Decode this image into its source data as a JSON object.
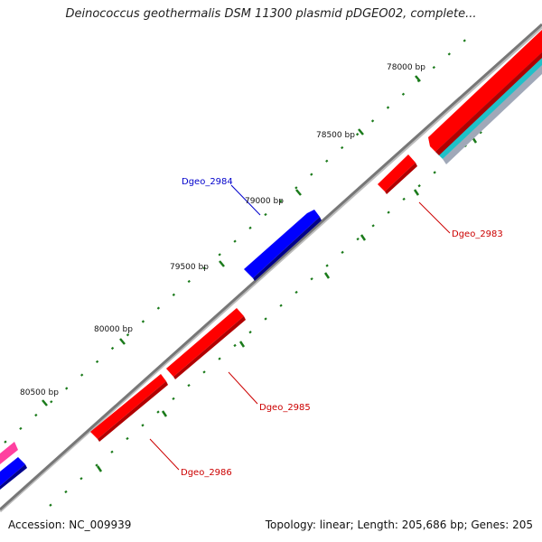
{
  "title": "Deinococcus geothermalis DSM 11300 plasmid pDGEO02, complete...",
  "footer": {
    "accession": "Accession: NC_009939",
    "summary": "Topology: linear; Length: 205,686 bp; Genes: 205"
  },
  "ruler": [
    {
      "label": "78000 bp"
    },
    {
      "label": "78500 bp"
    },
    {
      "label": "79000 bp"
    },
    {
      "label": "79500 bp"
    },
    {
      "label": "80000 bp"
    },
    {
      "label": "80500 bp"
    }
  ],
  "genes": [
    {
      "label": "Dgeo_2983",
      "color": "#ff0000",
      "strand": "reverse"
    },
    {
      "label": "Dgeo_2984",
      "color": "#0000ff",
      "strand": "forward"
    },
    {
      "label": "Dgeo_2985",
      "color": "#ff0000",
      "strand": "reverse"
    },
    {
      "label": "Dgeo_2986",
      "color": "#ff0000",
      "strand": "reverse"
    }
  ],
  "colors": {
    "backbone": "#808080",
    "forward": "#0000ff",
    "reverse": "#ff0000",
    "other": "#ff40a0",
    "cyan": "#20c0c8",
    "tick_dots": "#1a7a1a",
    "label_forward": "#0000cc",
    "label_reverse": "#cc0000"
  }
}
